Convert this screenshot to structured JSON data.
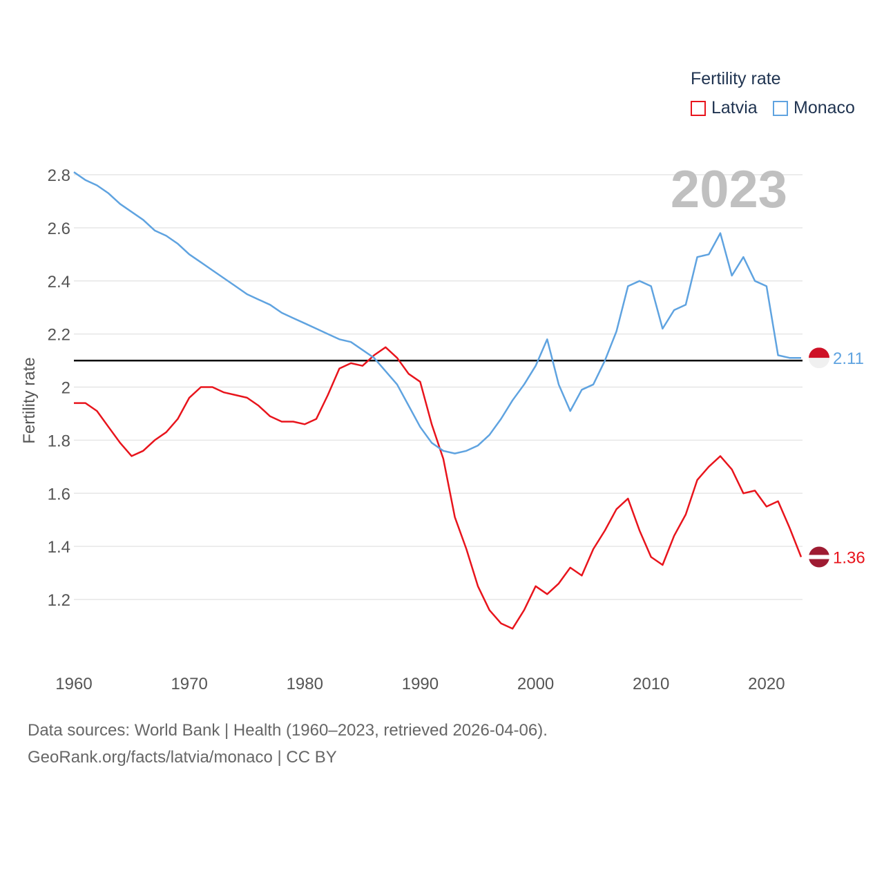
{
  "legend": {
    "title": "Fertility rate",
    "items": [
      {
        "label": "Latvia",
        "color": "#e8141c"
      },
      {
        "label": "Monaco",
        "color": "#5fa3e0"
      }
    ]
  },
  "year_label": "2023",
  "end_labels": {
    "monaco": "2.11",
    "latvia": "1.36"
  },
  "footer": {
    "line1": "Data sources: World Bank | Health (1960–2023, retrieved 2026-04-06).",
    "line2": "GeoRank.org/facts/latvia/monaco | CC BY"
  },
  "chart_data": {
    "type": "line",
    "title": "",
    "xlabel": "",
    "ylabel": "Fertility rate",
    "xlim": [
      1960,
      2023
    ],
    "ylim": [
      1.0,
      2.85
    ],
    "x_ticks": [
      1960,
      1970,
      1980,
      1990,
      2000,
      2010,
      2020
    ],
    "y_ticks": [
      1.2,
      1.4,
      1.6,
      1.8,
      2,
      2.2,
      2.4,
      2.6,
      2.8
    ],
    "y_tick_labels": [
      "1.2",
      "1.4",
      "1.6",
      "1.8",
      "2",
      "2.2",
      "2.4",
      "2.6",
      "2.8"
    ],
    "x_tick_labels": [
      "1960",
      "1970",
      "1980",
      "1990",
      "2000",
      "2010",
      "2020"
    ],
    "reference_line": 2.1,
    "x": [
      1960,
      1961,
      1962,
      1963,
      1964,
      1965,
      1966,
      1967,
      1968,
      1969,
      1970,
      1971,
      1972,
      1973,
      1974,
      1975,
      1976,
      1977,
      1978,
      1979,
      1980,
      1981,
      1982,
      1983,
      1984,
      1985,
      1986,
      1987,
      1988,
      1989,
      1990,
      1991,
      1992,
      1993,
      1994,
      1995,
      1996,
      1997,
      1998,
      1999,
      2000,
      2001,
      2002,
      2003,
      2004,
      2005,
      2006,
      2007,
      2008,
      2009,
      2010,
      2011,
      2012,
      2013,
      2014,
      2015,
      2016,
      2017,
      2018,
      2019,
      2020,
      2021,
      2022,
      2023
    ],
    "series": [
      {
        "name": "Latvia",
        "color": "#e8141c",
        "values": [
          1.94,
          1.94,
          1.91,
          1.85,
          1.79,
          1.74,
          1.76,
          1.8,
          1.83,
          1.88,
          1.96,
          2.0,
          2.0,
          1.98,
          1.97,
          1.96,
          1.93,
          1.89,
          1.87,
          1.87,
          1.86,
          1.88,
          1.97,
          2.07,
          2.09,
          2.08,
          2.12,
          2.15,
          2.11,
          2.05,
          2.02,
          1.86,
          1.73,
          1.51,
          1.39,
          1.25,
          1.16,
          1.11,
          1.09,
          1.16,
          1.25,
          1.22,
          1.26,
          1.32,
          1.29,
          1.39,
          1.46,
          1.54,
          1.58,
          1.46,
          1.36,
          1.33,
          1.44,
          1.52,
          1.65,
          1.7,
          1.74,
          1.69,
          1.6,
          1.61,
          1.55,
          1.57,
          1.47,
          1.36
        ]
      },
      {
        "name": "Monaco",
        "color": "#5fa3e0",
        "values": [
          2.81,
          2.78,
          2.76,
          2.73,
          2.69,
          2.66,
          2.63,
          2.59,
          2.57,
          2.54,
          2.5,
          2.47,
          2.44,
          2.41,
          2.38,
          2.35,
          2.33,
          2.31,
          2.28,
          2.26,
          2.24,
          2.22,
          2.2,
          2.18,
          2.17,
          2.14,
          2.11,
          2.06,
          2.01,
          1.93,
          1.85,
          1.79,
          1.76,
          1.75,
          1.76,
          1.78,
          1.82,
          1.88,
          1.95,
          2.01,
          2.08,
          2.18,
          2.01,
          1.91,
          1.99,
          2.01,
          2.1,
          2.21,
          2.38,
          2.4,
          2.38,
          2.22,
          2.29,
          2.31,
          2.49,
          2.5,
          2.58,
          2.42,
          2.49,
          2.4,
          2.38,
          2.12,
          2.11,
          2.11
        ]
      }
    ]
  }
}
